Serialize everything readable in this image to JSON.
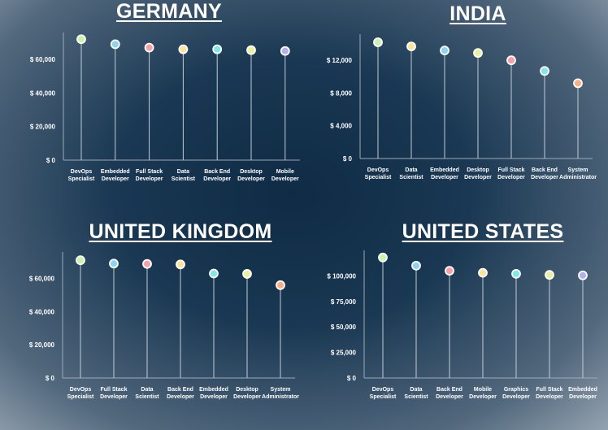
{
  "chart_data": [
    {
      "type": "scatter",
      "title": "GERMANY",
      "categories": [
        "DevOps\nSpecialist",
        "Embedded\nDeveloper",
        "Full Stack\nDeveloper",
        "Data\nScientist",
        "Back End\nDeveloper",
        "Desktop\nDeveloper",
        "Mobile\nDeveloper"
      ],
      "values": [
        72000,
        69000,
        67000,
        66000,
        66000,
        65500,
        65000
      ],
      "ticks": [
        0,
        20000,
        40000,
        60000
      ],
      "tick_labels": [
        "$ 0",
        "$ 20,000",
        "$ 40,000",
        "$ 60,000"
      ],
      "ylim": [
        0,
        76000
      ],
      "colors": [
        "#c8f5a8",
        "#8fd3f2",
        "#f7a0a8",
        "#fbe39a",
        "#7fe8ec",
        "#e9f29a",
        "#b4b0ef"
      ]
    },
    {
      "type": "scatter",
      "title": "INDIA",
      "categories": [
        "DevOps\nSpecialist",
        "Data\nScientist",
        "Embedded\nDeveloper",
        "Desktop\nDeveloper",
        "Full Stack\nDeveloper",
        "Back End\nDeveloper",
        "System\nAdministrator"
      ],
      "values": [
        14200,
        13700,
        13200,
        12900,
        12000,
        10700,
        9200
      ],
      "ticks": [
        0,
        4000,
        8000,
        12000
      ],
      "tick_labels": [
        "$ 0",
        "$ 4,000",
        "$ 8,000",
        "$ 12,000"
      ],
      "ylim": [
        0,
        15200
      ],
      "colors": [
        "#c8f5a8",
        "#fbe39a",
        "#8fd3f2",
        "#e9f29a",
        "#f7a0a8",
        "#7fe8ec",
        "#f9b184"
      ]
    },
    {
      "type": "scatter",
      "title": "UNITED KINGDOM",
      "categories": [
        "DevOps\nSpecialist",
        "Full Stack\nDeveloper",
        "Data\nScientist",
        "Back End\nDeveloper",
        "Embedded\nDeveloper",
        "Desktop\nDeveloper",
        "System\nAdministrator"
      ],
      "values": [
        71000,
        69000,
        68800,
        68500,
        63000,
        62800,
        56000
      ],
      "ticks": [
        0,
        20000,
        40000,
        60000
      ],
      "tick_labels": [
        "$ 0",
        "$ 20,000",
        "$ 40,000",
        "$ 60,000"
      ],
      "ylim": [
        0,
        76000
      ],
      "colors": [
        "#c8f5a8",
        "#8fd3f2",
        "#f7a0a8",
        "#fbe39a",
        "#7fe8ec",
        "#e9f29a",
        "#f9b184"
      ]
    },
    {
      "type": "scatter",
      "title": "UNITED STATES",
      "categories": [
        "DevOps\nSpecialist",
        "Data\nScientist",
        "Back End\nDeveloper",
        "Mobile\nDeveloper",
        "Graphics\nDeveloper",
        "Full Stack\nDeveloper",
        "Embedded\nDeveloper"
      ],
      "values": [
        118000,
        110000,
        105000,
        103000,
        102000,
        101000,
        100500
      ],
      "ticks": [
        0,
        25000,
        50000,
        75000,
        100000
      ],
      "tick_labels": [
        "$ 0",
        "$ 25,000",
        "$ 50,000",
        "$ 75,000",
        "$ 100,000"
      ],
      "ylim": [
        0,
        125000
      ],
      "colors": [
        "#c8f5a8",
        "#8fd3f2",
        "#f7a0a8",
        "#fbe39a",
        "#7fe8ec",
        "#e9f29a",
        "#b4b0ef"
      ]
    }
  ]
}
